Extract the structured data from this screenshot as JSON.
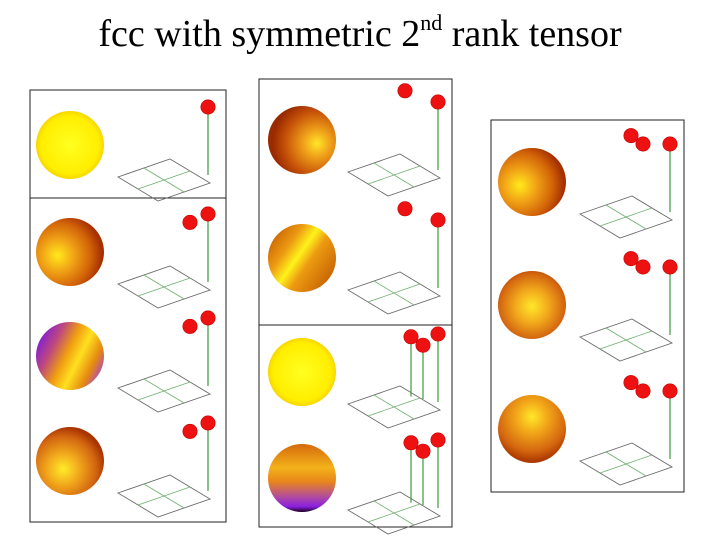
{
  "title": {
    "prefix": "fcc with symmetric 2",
    "superscript": "nd",
    "suffix": " rank tensor"
  },
  "colors": {
    "dot": "#ee1111",
    "stem": "#3d9a3d",
    "frame": "#222222",
    "sphere_yellow": "#ffee00",
    "sphere_orange": "#e07a10",
    "sphere_dark": "#b83a00",
    "sphere_purple": "#8a20e0"
  },
  "columns": [
    {
      "panels": [
        {
          "sphere": "uniform-yellow",
          "stems": [
            {
              "h": 1.0
            }
          ]
        },
        {
          "sphere": "orange-highlight-left",
          "stems": [
            {
              "h": 1.0
            },
            {
              "dx": -0.6,
              "h": 0.7,
              "dot_only": true
            }
          ]
        },
        {
          "sphere": "orange-purple-band",
          "stems": [
            {
              "h": 1.0
            },
            {
              "dx": -0.6,
              "h": 0.7,
              "dot_only": true
            }
          ]
        },
        {
          "sphere": "orange-highlight-bottom",
          "stems": [
            {
              "h": 1.0
            },
            {
              "dx": -0.6,
              "h": 0.7,
              "dot_only": true
            }
          ]
        }
      ]
    },
    {
      "panels": [
        {
          "sphere": "orange-highlight-right",
          "stems": [
            {
              "h": 1.0
            },
            {
              "dx": -1.1,
              "h": 1.4,
              "dot_only": true
            }
          ]
        },
        {
          "sphere": "orange-yellow-band",
          "stems": [
            {
              "h": 1.0
            },
            {
              "dx": -1.1,
              "h": 1.4,
              "dot_only": true
            }
          ]
        },
        {
          "sphere": "uniform-yellow",
          "stems": [
            {
              "h": 1.0
            },
            {
              "dx": -0.5,
              "h": 0.6
            },
            {
              "dx": -0.9,
              "h": 0.9
            }
          ]
        },
        {
          "sphere": "orange-purple-bottom",
          "stems": [
            {
              "h": 1.0
            },
            {
              "dx": -0.5,
              "h": 0.6
            },
            {
              "dx": -0.9,
              "h": 0.9
            }
          ]
        }
      ]
    },
    {
      "panels": [
        {
          "sphere": "orange-highlight-left",
          "stems": [
            {
              "h": 1.0
            },
            {
              "dx": -0.9,
              "h": 1.0,
              "dot_only": true
            },
            {
              "dx": -1.3,
              "h": 1.3,
              "dot_only": true
            }
          ]
        },
        {
          "sphere": "orange-highlight-center",
          "stems": [
            {
              "h": 1.0
            },
            {
              "dx": -0.9,
              "h": 1.0,
              "dot_only": true
            },
            {
              "dx": -1.3,
              "h": 1.3,
              "dot_only": true
            }
          ]
        },
        {
          "sphere": "orange-highlight-top",
          "stems": [
            {
              "h": 1.0
            },
            {
              "dx": -0.9,
              "h": 1.0,
              "dot_only": true
            },
            {
              "dx": -1.3,
              "h": 1.3,
              "dot_only": true
            }
          ]
        }
      ]
    }
  ]
}
